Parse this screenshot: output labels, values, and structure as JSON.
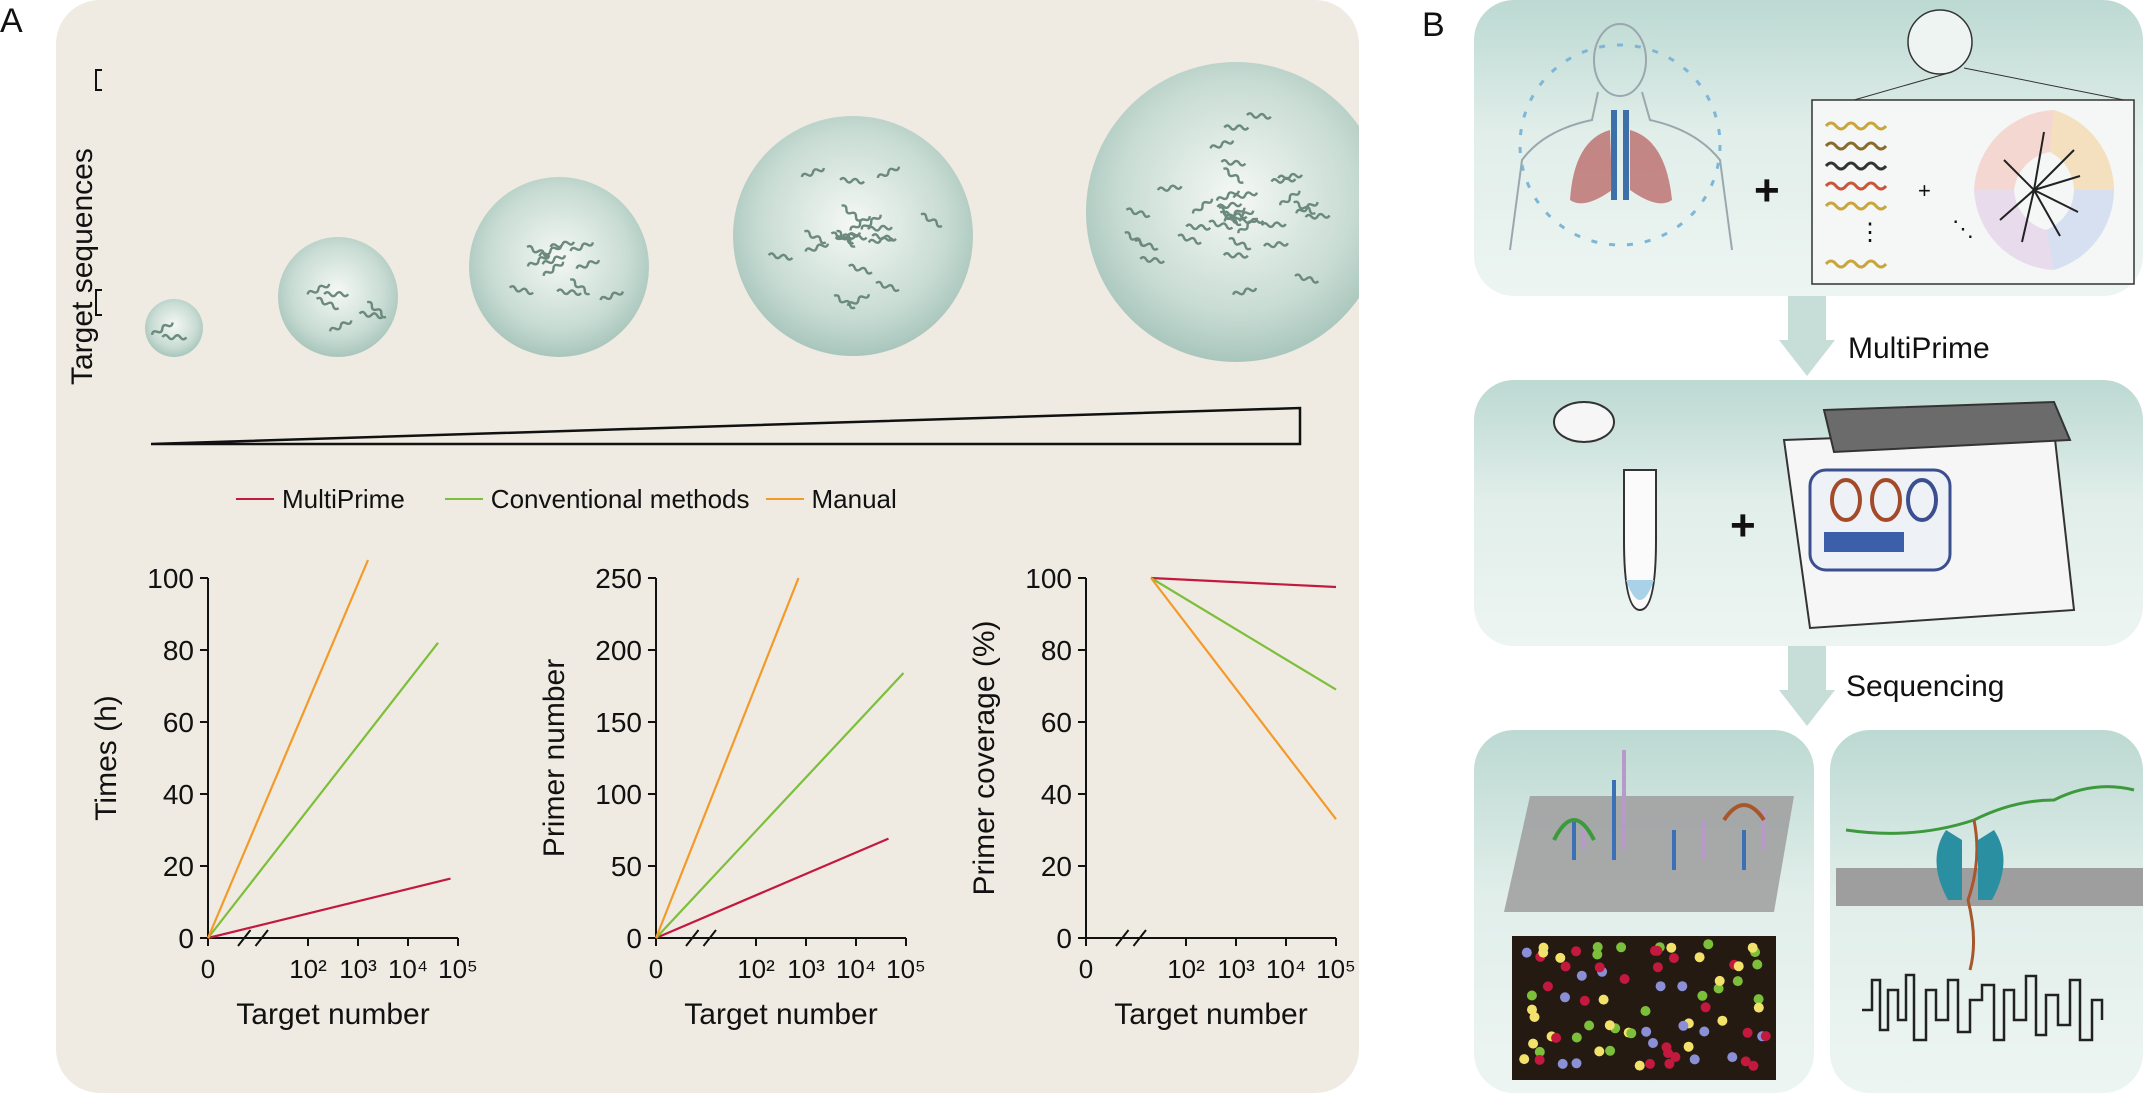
{
  "panel_a": {
    "letter": "A",
    "side_label": "Target sequences",
    "legend": [
      {
        "name": "MultiPrime",
        "color": "#c3193f"
      },
      {
        "name": "Conventional methods",
        "color": "#7cbf3a"
      },
      {
        "name": "Manual",
        "color": "#f39a2b"
      }
    ]
  },
  "panel_b": {
    "letter": "B",
    "step1_label": "MultiPrime",
    "step2_label": "Sequencing",
    "plus": "+"
  },
  "chart_data": [
    {
      "type": "line",
      "xlabel": "Target number",
      "ylabel": "Times (h)",
      "ylim": [
        0,
        100
      ],
      "yticks": [
        "0",
        "20",
        "40",
        "60",
        "80",
        "100"
      ],
      "xticks": [
        "0",
        "10²",
        "10³",
        "10⁴",
        "10⁵"
      ],
      "series": [
        {
          "name": "MultiPrime",
          "points": [
            [
              0,
              0
            ],
            [
              4.85,
              16.5
            ]
          ]
        },
        {
          "name": "Conventional methods",
          "points": [
            [
              0,
              0
            ],
            [
              4.6,
              82
            ]
          ]
        },
        {
          "name": "Manual",
          "points": [
            [
              0,
              0
            ],
            [
              3.2,
              105
            ]
          ]
        }
      ]
    },
    {
      "type": "line",
      "xlabel": "Target number",
      "ylabel": "Primer number",
      "ylim": [
        0,
        250
      ],
      "yticks": [
        "0",
        "50",
        "100",
        "150",
        "200",
        "250"
      ],
      "xticks": [
        "0",
        "10²",
        "10³",
        "10⁴",
        "10⁵"
      ],
      "series": [
        {
          "name": "MultiPrime",
          "points": [
            [
              0,
              0
            ],
            [
              4.65,
              69
            ]
          ]
        },
        {
          "name": "Conventional methods",
          "points": [
            [
              0,
              0
            ],
            [
              4.95,
              184
            ]
          ]
        },
        {
          "name": "Manual",
          "points": [
            [
              0,
              0
            ],
            [
              2.85,
              250
            ]
          ]
        }
      ]
    },
    {
      "type": "line",
      "xlabel": "Target number",
      "ylabel": "Primer coverage (%)",
      "ylim": [
        0,
        100
      ],
      "yticks": [
        "0",
        "20",
        "40",
        "60",
        "80",
        "100"
      ],
      "xticks": [
        "0",
        "10²",
        "10³",
        "10⁴",
        "10⁵"
      ],
      "series": [
        {
          "name": "MultiPrime",
          "points": [
            [
              1.3,
              100
            ],
            [
              5,
              97.5
            ]
          ]
        },
        {
          "name": "Conventional methods",
          "points": [
            [
              1.3,
              100
            ],
            [
              5,
              69
            ]
          ]
        },
        {
          "name": "Manual",
          "points": [
            [
              1.3,
              100
            ],
            [
              5,
              33
            ]
          ]
        }
      ]
    }
  ]
}
